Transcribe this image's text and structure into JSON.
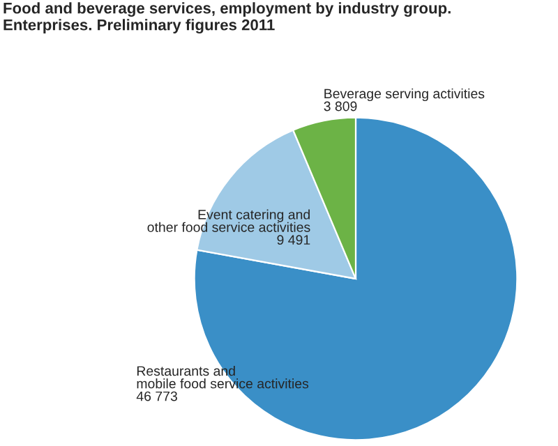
{
  "chart_data": {
    "type": "pie",
    "title": "Food and beverage services, employment by industry group.\nEnterprises. Preliminary figures 2011",
    "categories": [
      "Restaurants and\nmobile food service activities",
      "Event catering and\nother food service activities",
      "Beverage serving activities"
    ],
    "values": [
      46773,
      9491,
      3809
    ],
    "value_labels": [
      "46 773",
      "9 491",
      "3 809"
    ],
    "colors": [
      "#3a8fc7",
      "#9fcae6",
      "#6cb346"
    ]
  }
}
